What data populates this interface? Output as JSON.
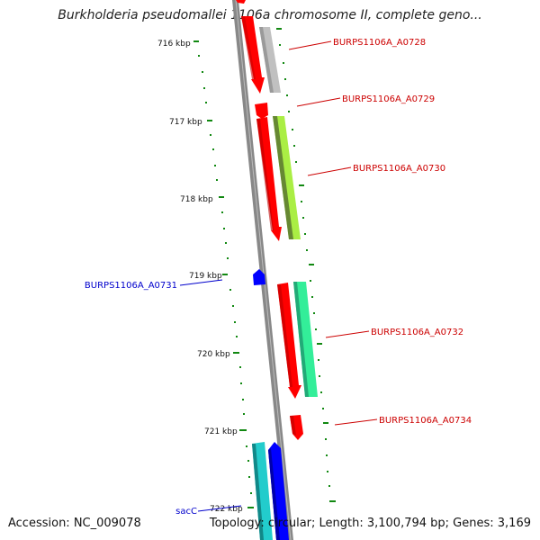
{
  "title": "Burkholderia pseudomallei 1106a chromosome II, complete geno...",
  "footer": {
    "accession": "Accession: NC_009078",
    "summary": "Topology: circular; Length: 3,100,794 bp; Genes: 3,169"
  },
  "colors": {
    "forward_cds": "#ff0000",
    "reverse_strand_label": "#0000cc",
    "forward_label": "#cc0000",
    "backbone": "#888888",
    "gc_dashes": "#118811"
  },
  "ticks": [
    "716 kbp",
    "717 kbp",
    "718 kbp",
    "719 kbp",
    "720 kbp",
    "721 kbp",
    "722 kbp"
  ],
  "gene_labels": {
    "a0728": "BURPS1106A_A0728",
    "a0729": "BURPS1106A_A0729",
    "a0730": "BURPS1106A_A0730",
    "a0731": "BURPS1106A_A0731",
    "a0732": "BURPS1106A_A0732",
    "a0734": "BURPS1106A_A0734",
    "sacC": "sacC"
  }
}
